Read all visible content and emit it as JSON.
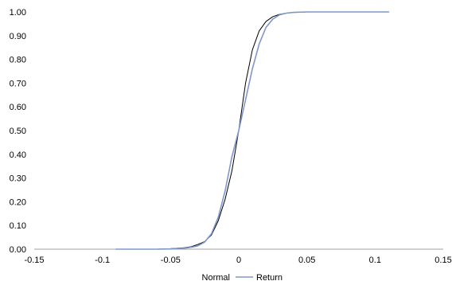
{
  "chart_data": {
    "type": "line",
    "xlim": [
      -0.15,
      0.15
    ],
    "ylim": [
      0,
      1
    ],
    "x_ticks": [
      -0.15,
      -0.1,
      -0.05,
      0,
      0.05,
      0.1,
      0.15
    ],
    "x_tick_labels": [
      "-0.15",
      "-0.1",
      "-0.05",
      "0",
      "0.05",
      "0.1",
      "0.15"
    ],
    "y_ticks": [
      0,
      0.1,
      0.2,
      0.3,
      0.4,
      0.5,
      0.6,
      0.7,
      0.8,
      0.9,
      1.0
    ],
    "y_tick_labels": [
      "0.00",
      "0.10",
      "0.20",
      "0.30",
      "0.40",
      "0.50",
      "0.60",
      "0.70",
      "0.80",
      "0.90",
      "1.00"
    ],
    "grid": false,
    "legend_position": "bottom",
    "series": [
      {
        "name": "Normal",
        "color": "#000000",
        "x": [
          -0.09,
          -0.06,
          -0.05,
          -0.04,
          -0.035,
          -0.03,
          -0.025,
          -0.02,
          -0.015,
          -0.01,
          -0.005,
          0,
          0.005,
          0.01,
          0.015,
          0.02,
          0.025,
          0.03,
          0.035,
          0.04,
          0.05
        ],
        "y": [
          0.0,
          0.0,
          0.002,
          0.006,
          0.01,
          0.02,
          0.032,
          0.06,
          0.12,
          0.21,
          0.33,
          0.5,
          0.7,
          0.84,
          0.92,
          0.96,
          0.98,
          0.99,
          0.995,
          0.998,
          1.0
        ]
      },
      {
        "name": "Return",
        "color": "#7f97c8",
        "x": [
          -0.09,
          -0.06,
          -0.05,
          -0.04,
          -0.035,
          -0.03,
          -0.025,
          -0.02,
          -0.015,
          -0.01,
          -0.005,
          0,
          0.005,
          0.01,
          0.015,
          0.02,
          0.025,
          0.03,
          0.035,
          0.04,
          0.05,
          0.11
        ],
        "y": [
          0.0,
          0.0,
          0.001,
          0.004,
          0.008,
          0.014,
          0.03,
          0.065,
          0.135,
          0.245,
          0.39,
          0.5,
          0.63,
          0.76,
          0.865,
          0.935,
          0.97,
          0.988,
          0.995,
          0.998,
          1.0,
          1.0
        ]
      }
    ]
  }
}
